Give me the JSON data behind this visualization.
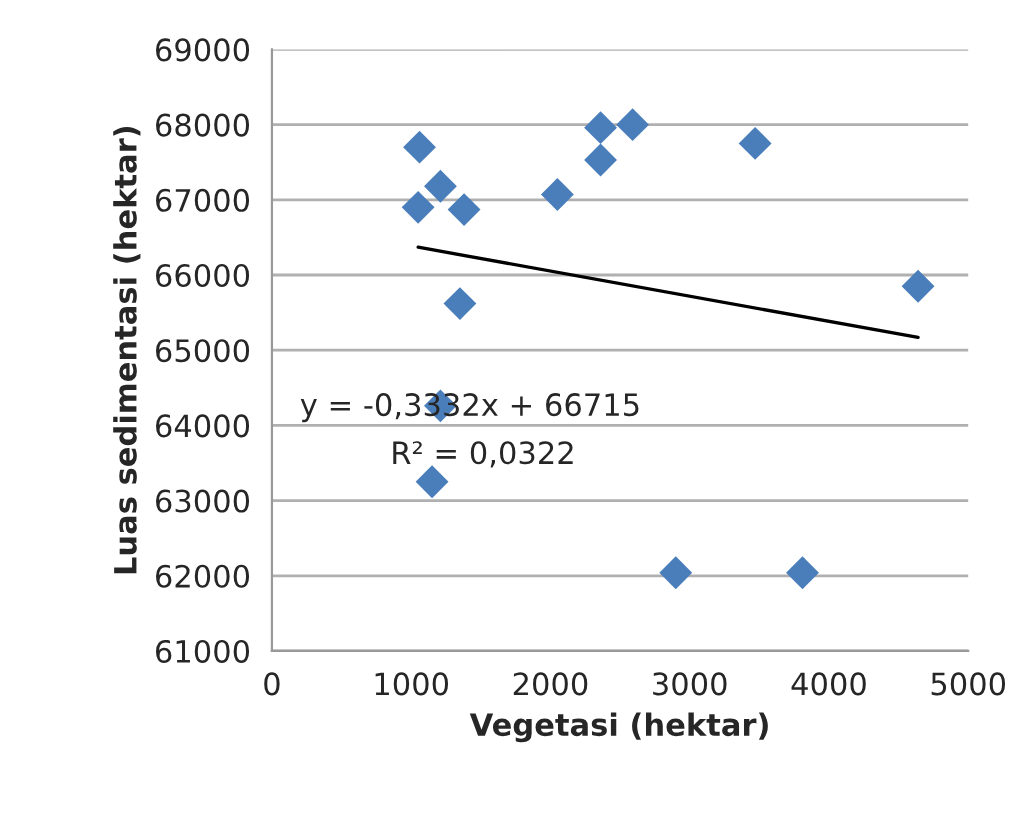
{
  "chart_data": {
    "type": "scatter",
    "xlabel": "Vegetasi (hektar)",
    "ylabel": "Luas sedimentasi (hektar)",
    "annotations": [
      "y = -0,3332x + 66715",
      "R² = 0,0322"
    ],
    "series": [
      {
        "color": "#4a7ebb",
        "marker": "diamond",
        "x": [
          1060,
          1050,
          1210,
          1380,
          1350,
          1210,
          1150,
          2050,
          2360,
          2360,
          2590,
          3470,
          4640,
          2900,
          3810
        ],
        "values": [
          67700,
          66900,
          67180,
          66870,
          65620,
          64260,
          63250,
          67070,
          67960,
          67530,
          68000,
          67750,
          65850,
          62040,
          62040
        ]
      },
      {
        "type": "line",
        "color": "#000000",
        "marker": "none",
        "x": [
          1050,
          4640
        ],
        "values": [
          66370,
          65170
        ]
      }
    ],
    "xlim": [
      0,
      5000
    ],
    "xticks": [
      0,
      1000,
      2000,
      3000,
      4000,
      5000
    ],
    "ylim": [
      61000,
      69000
    ],
    "yticks": [
      61000,
      62000,
      63000,
      64000,
      65000,
      66000,
      67000,
      68000,
      69000
    ],
    "grid": "y",
    "legend": false
  }
}
